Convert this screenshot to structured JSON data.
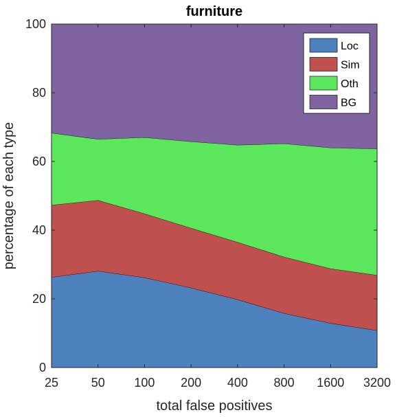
{
  "chart_data": {
    "type": "area",
    "stacked": true,
    "title": "furniture",
    "xlabel": "total false positives",
    "ylabel": "percentage of each type",
    "categories": [
      "25",
      "50",
      "100",
      "200",
      "400",
      "800",
      "1600",
      "3200"
    ],
    "ylim": [
      0,
      100
    ],
    "yticks": [
      0,
      20,
      40,
      60,
      80,
      100
    ],
    "grid": false,
    "legend_position": "top-right",
    "series": [
      {
        "name": "Loc",
        "color": "#4d81bd",
        "values": [
          26.3,
          28.1,
          26.2,
          23.2,
          19.8,
          15.8,
          12.9,
          10.8
        ]
      },
      {
        "name": "Sim",
        "color": "#c0504d",
        "values": [
          21.0,
          20.6,
          18.6,
          17.4,
          16.7,
          16.4,
          15.9,
          16.1
        ]
      },
      {
        "name": "Oth",
        "color": "#5ce65c",
        "values": [
          21.0,
          17.8,
          22.2,
          25.2,
          28.3,
          33.0,
          35.2,
          36.8
        ]
      },
      {
        "name": "BG",
        "color": "#8064a2",
        "values": [
          31.7,
          33.5,
          33.0,
          34.2,
          35.2,
          34.8,
          36.0,
          36.3
        ]
      }
    ]
  }
}
